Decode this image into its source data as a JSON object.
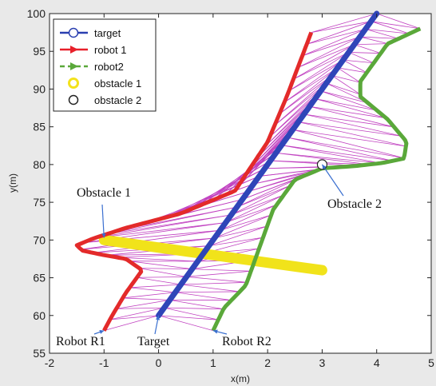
{
  "chart_data": {
    "type": "line",
    "xlabel": "x(m)",
    "ylabel": "y(m)",
    "xlim": [
      -2,
      5
    ],
    "ylim": [
      55,
      100
    ],
    "xticks": [
      "-2",
      "-1",
      "0",
      "1",
      "2",
      "3",
      "4",
      "5"
    ],
    "yticks": [
      "55",
      "60",
      "65",
      "70",
      "75",
      "80",
      "85",
      "90",
      "95",
      "100"
    ],
    "grid": false,
    "legend_position": "top-left",
    "legend": [
      {
        "label": "target",
        "color": "#2a3fb0",
        "marker": "circle"
      },
      {
        "label": "robot 1",
        "color": "#e8202a",
        "marker": "triangle-right"
      },
      {
        "label": "robot2",
        "color": "#5aa83a",
        "marker": "triangle-right",
        "dashed": true
      },
      {
        "label": "obstacle 1",
        "color": "#f3e21c",
        "marker": "circle"
      },
      {
        "label": "obstacle 2",
        "color": "#222222",
        "marker": "circle"
      }
    ],
    "series": [
      {
        "name": "target",
        "color": "#2f45b8",
        "x": [
          0,
          0.5,
          1,
          1.5,
          2,
          2.5,
          3,
          3.5,
          4
        ],
        "y": [
          60,
          65,
          70,
          75,
          80,
          85,
          90,
          95,
          100
        ]
      },
      {
        "name": "robot 1",
        "color": "#e32a2a",
        "x": [
          -1,
          -0.85,
          -0.6,
          -0.3,
          -0.6,
          -1.0,
          -1.4,
          -1.5,
          -1.2,
          -0.6,
          0.4,
          1.4,
          2.0,
          2.35,
          2.8
        ],
        "y": [
          58,
          60,
          63,
          66,
          67.5,
          68,
          68.6,
          69.3,
          70.2,
          71.6,
          73.5,
          76.5,
          83,
          89,
          97.5
        ]
      },
      {
        "name": "robot2",
        "color": "#5aa83a",
        "x": [
          1,
          1.2,
          1.6,
          1.75,
          1.9,
          2.1,
          2.5,
          3.0,
          3.6,
          4.1,
          4.5,
          4.55,
          4.2,
          3.7,
          3.7,
          4.2,
          4.8
        ],
        "y": [
          58,
          61,
          64,
          67,
          70,
          74,
          78,
          79.5,
          79.8,
          80.2,
          80.8,
          83,
          86,
          89,
          91,
          96,
          98
        ]
      },
      {
        "name": "obstacle 1",
        "color": "#f1e31a",
        "x": [
          -1,
          0,
          1,
          2,
          3
        ],
        "y": [
          70,
          69,
          68,
          67,
          66
        ]
      },
      {
        "name": "obstacle 2",
        "color": "#222222",
        "x": [
          3
        ],
        "y": [
          80
        ]
      }
    ],
    "annotations": [
      {
        "text": "Obstacle 1",
        "target": [
          -1,
          70.3
        ]
      },
      {
        "text": "Obstacle 2",
        "target": [
          3,
          80
        ]
      },
      {
        "text": "Robot R1",
        "target": [
          -1,
          58
        ]
      },
      {
        "text": "Target",
        "target": [
          0,
          60
        ]
      },
      {
        "text": "Robot R2",
        "target": [
          1,
          58
        ]
      }
    ],
    "connection_color": "#c040c0"
  }
}
